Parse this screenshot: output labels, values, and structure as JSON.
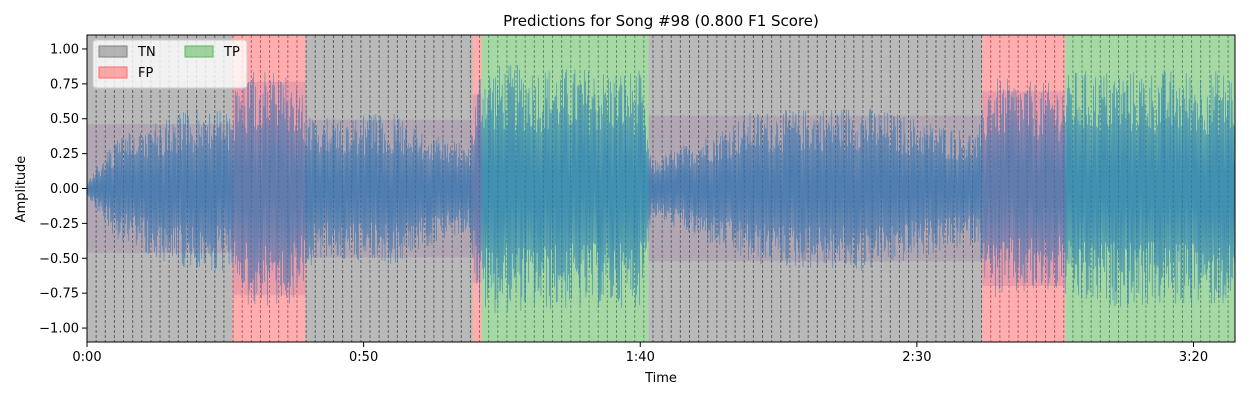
{
  "chart_data": {
    "type": "area",
    "title": "Predictions for Song #98 (0.800 F1 Score)",
    "xlabel": "Time",
    "ylabel": "Amplitude",
    "xlim": [
      0,
      207.5
    ],
    "ylim": [
      -1.1,
      1.1
    ],
    "x_ticks": [
      {
        "value": 0,
        "label": "0:00"
      },
      {
        "value": 50,
        "label": "0:50"
      },
      {
        "value": 100,
        "label": "1:40"
      },
      {
        "value": 150,
        "label": "2:30"
      },
      {
        "value": 200,
        "label": "3:20"
      }
    ],
    "y_ticks": [
      {
        "value": -1.0,
        "label": "−1.00"
      },
      {
        "value": -0.75,
        "label": "−0.75"
      },
      {
        "value": -0.5,
        "label": "−0.50"
      },
      {
        "value": -0.25,
        "label": "−0.25"
      },
      {
        "value": 0.0,
        "label": "0.00"
      },
      {
        "value": 0.25,
        "label": "0.25"
      },
      {
        "value": 0.5,
        "label": "0.50"
      },
      {
        "value": 0.75,
        "label": "0.75"
      },
      {
        "value": 1.0,
        "label": "1.00"
      }
    ],
    "legend": {
      "placement": "top-left",
      "entries": [
        {
          "label": "TN",
          "color": "#808080"
        },
        {
          "label": "FP",
          "color": "#ff6b6b"
        },
        {
          "label": "TP",
          "color": "#5cb85c"
        }
      ]
    },
    "segments": [
      {
        "start": 0,
        "end": 26.3,
        "label": "TN"
      },
      {
        "start": 26.3,
        "end": 39.5,
        "label": "FP"
      },
      {
        "start": 39.5,
        "end": 69.7,
        "label": "TN"
      },
      {
        "start": 69.7,
        "end": 71.3,
        "label": "FP"
      },
      {
        "start": 71.3,
        "end": 101.5,
        "label": "TP"
      },
      {
        "start": 101.5,
        "end": 161.8,
        "label": "TN"
      },
      {
        "start": 161.8,
        "end": 176.8,
        "label": "FP"
      },
      {
        "start": 176.8,
        "end": 207.5,
        "label": "TP"
      }
    ],
    "beat_interval": 1.65,
    "waveform": {
      "color": "#1f77b4",
      "envelope": [
        {
          "t": 0,
          "amp": 0.05
        },
        {
          "t": 5,
          "amp": 0.35
        },
        {
          "t": 15,
          "amp": 0.55
        },
        {
          "t": 26,
          "amp": 0.6
        },
        {
          "t": 28,
          "amp": 0.85
        },
        {
          "t": 38,
          "amp": 0.85
        },
        {
          "t": 41,
          "amp": 0.5
        },
        {
          "t": 55,
          "amp": 0.55
        },
        {
          "t": 69,
          "amp": 0.3
        },
        {
          "t": 71,
          "amp": 0.9
        },
        {
          "t": 100,
          "amp": 0.85
        },
        {
          "t": 102,
          "amp": 0.2
        },
        {
          "t": 120,
          "amp": 0.55
        },
        {
          "t": 140,
          "amp": 0.6
        },
        {
          "t": 161,
          "amp": 0.4
        },
        {
          "t": 163,
          "amp": 0.8
        },
        {
          "t": 176,
          "amp": 0.75
        },
        {
          "t": 178,
          "amp": 0.85
        },
        {
          "t": 207.5,
          "amp": 0.85
        }
      ]
    },
    "grid": false
  }
}
